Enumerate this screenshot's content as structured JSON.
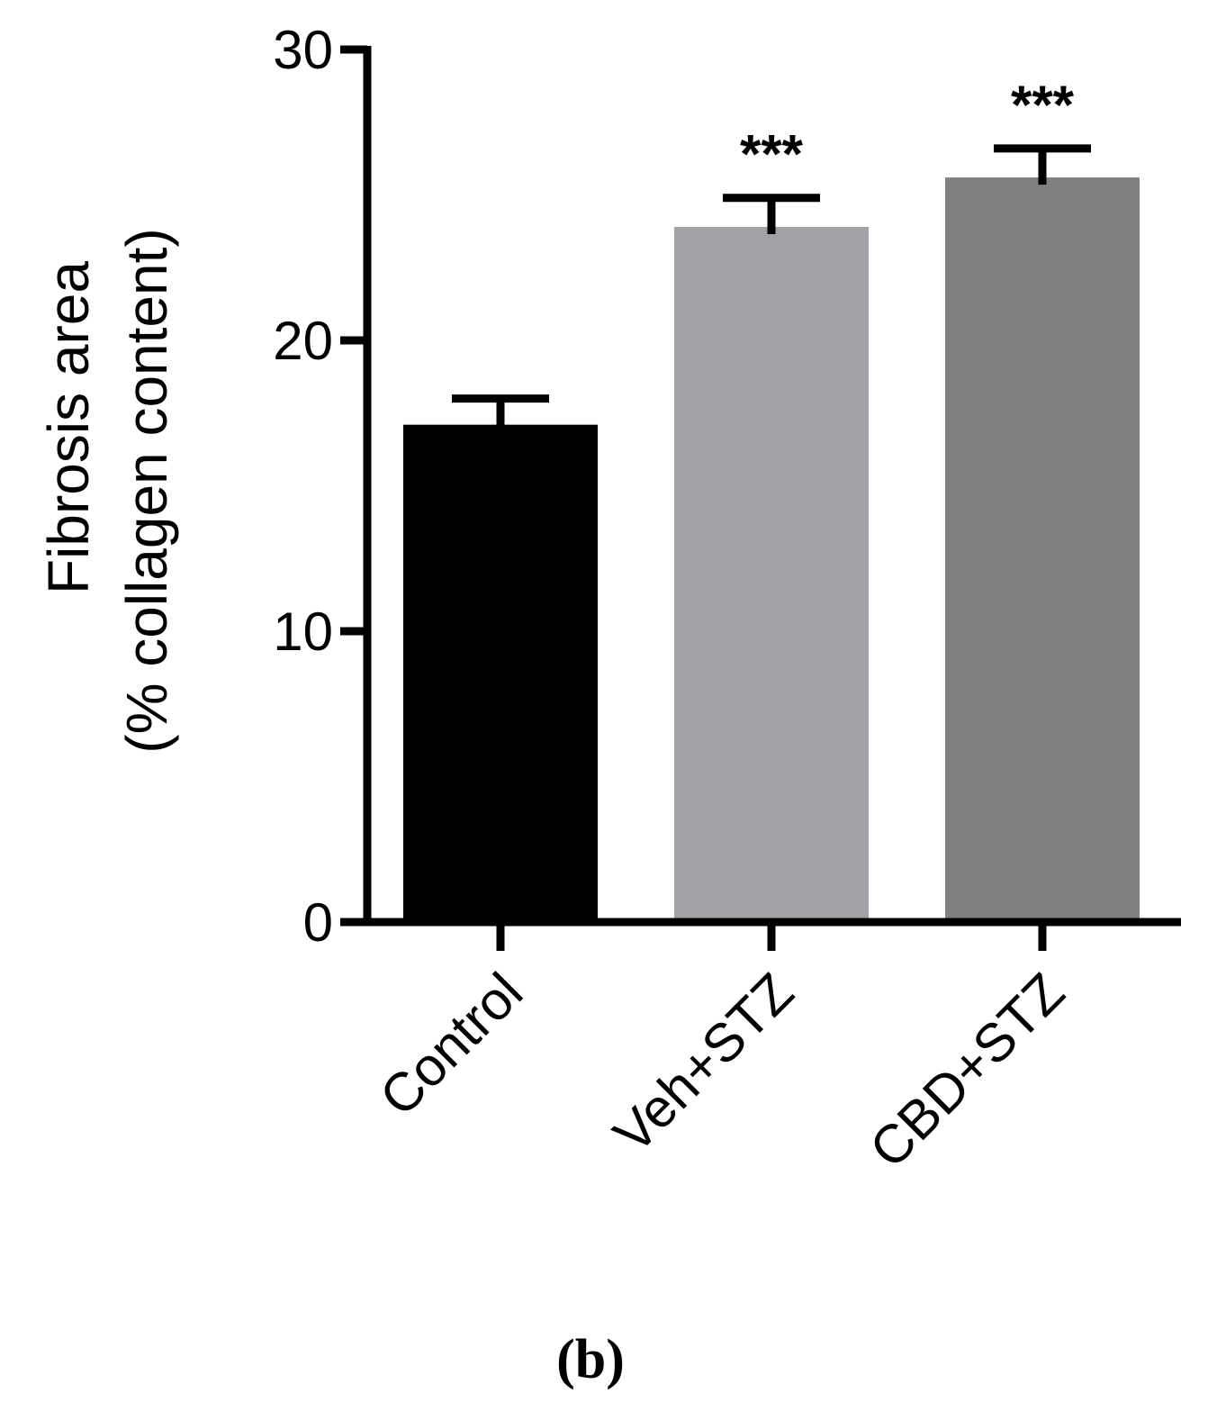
{
  "chart_data": {
    "type": "bar",
    "categories": [
      "Control",
      "Veh+STZ",
      "CBD+STZ"
    ],
    "values": [
      17.1,
      23.9,
      25.6
    ],
    "errors": [
      0.9,
      1.0,
      1.0
    ],
    "significance": [
      "",
      "***",
      "***"
    ],
    "colors": [
      "#000000",
      "#a2a1a6",
      "#808080"
    ],
    "ylabel_lines": [
      "Fibrosis area",
      "(% collagen content)"
    ],
    "xlabel": "",
    "ylim": [
      0,
      30
    ],
    "yticks": [
      0,
      10,
      20,
      30
    ],
    "grid": false,
    "legend": "none"
  },
  "panel_label": "(b)"
}
